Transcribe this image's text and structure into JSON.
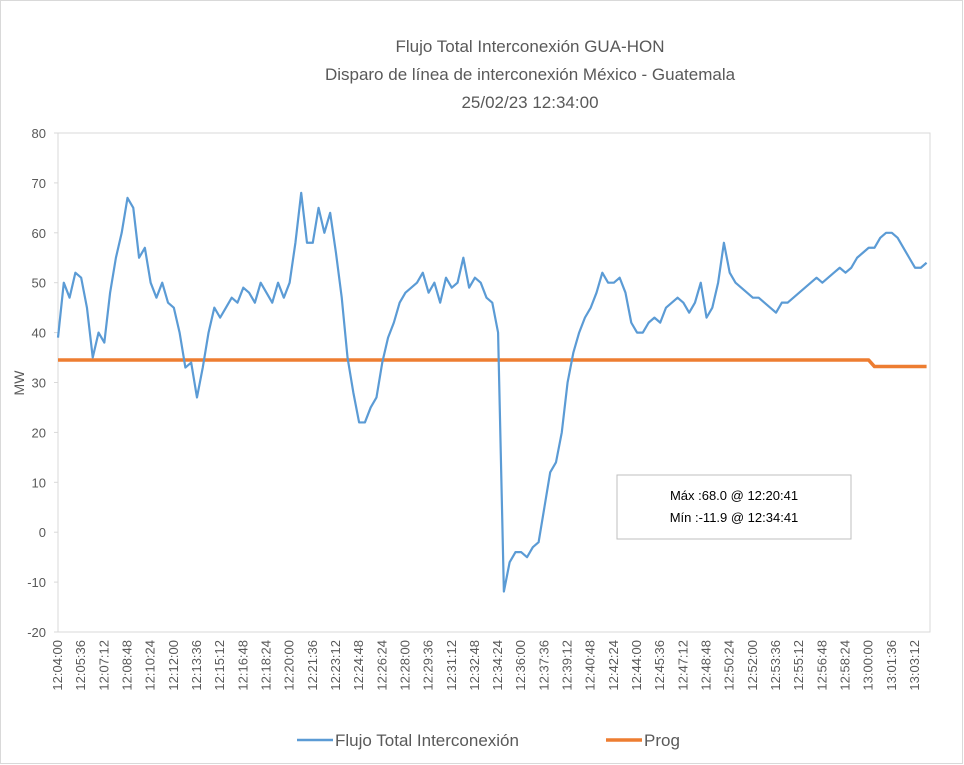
{
  "chart_data": {
    "type": "line",
    "title": "Flujo Total Interconexión GUA-HON",
    "subtitle": "Disparo de línea de interconexión México - Guatemala",
    "date": "25/02/23 12:34:00",
    "ylabel": "MW",
    "annotations": [
      "Máx :68.0 @ 12:20:41",
      "Mín :-11.9 @ 12:34:41"
    ],
    "x": [
      "12:04:00",
      "12:04:24",
      "12:04:48",
      "12:05:12",
      "12:05:36",
      "12:06:00",
      "12:06:24",
      "12:06:48",
      "12:07:12",
      "12:07:36",
      "12:08:00",
      "12:08:24",
      "12:08:48",
      "12:09:12",
      "12:09:36",
      "12:10:00",
      "12:10:24",
      "12:10:48",
      "12:11:12",
      "12:11:36",
      "12:12:00",
      "12:12:24",
      "12:12:48",
      "12:13:12",
      "12:13:36",
      "12:14:00",
      "12:14:24",
      "12:14:48",
      "12:15:12",
      "12:15:36",
      "12:16:00",
      "12:16:24",
      "12:16:48",
      "12:17:12",
      "12:17:36",
      "12:18:00",
      "12:18:24",
      "12:18:48",
      "12:19:12",
      "12:19:36",
      "12:20:00",
      "12:20:24",
      "12:20:48",
      "12:21:12",
      "12:21:36",
      "12:22:00",
      "12:22:24",
      "12:22:48",
      "12:23:12",
      "12:23:36",
      "12:24:00",
      "12:24:24",
      "12:24:48",
      "12:25:12",
      "12:25:36",
      "12:26:00",
      "12:26:24",
      "12:26:48",
      "12:27:12",
      "12:27:36",
      "12:28:00",
      "12:28:24",
      "12:28:48",
      "12:29:12",
      "12:29:36",
      "12:30:00",
      "12:30:24",
      "12:30:48",
      "12:31:12",
      "12:31:36",
      "12:32:00",
      "12:32:24",
      "12:32:48",
      "12:33:12",
      "12:33:36",
      "12:34:00",
      "12:34:24",
      "12:34:48",
      "12:35:12",
      "12:35:36",
      "12:36:00",
      "12:36:24",
      "12:36:48",
      "12:37:12",
      "12:37:36",
      "12:38:00",
      "12:38:24",
      "12:38:48",
      "12:39:12",
      "12:39:36",
      "12:40:00",
      "12:40:24",
      "12:40:48",
      "12:41:12",
      "12:41:36",
      "12:42:00",
      "12:42:24",
      "12:42:48",
      "12:43:12",
      "12:43:36",
      "12:44:00",
      "12:44:24",
      "12:44:48",
      "12:45:12",
      "12:45:36",
      "12:46:00",
      "12:46:24",
      "12:46:48",
      "12:47:12",
      "12:47:36",
      "12:48:00",
      "12:48:24",
      "12:48:48",
      "12:49:12",
      "12:49:36",
      "12:50:00",
      "12:50:24",
      "12:50:48",
      "12:51:12",
      "12:51:36",
      "12:52:00",
      "12:52:24",
      "12:52:48",
      "12:53:12",
      "12:53:36",
      "12:54:00",
      "12:54:24",
      "12:54:48",
      "12:55:12",
      "12:55:36",
      "12:56:00",
      "12:56:24",
      "12:56:48",
      "12:57:12",
      "12:57:36",
      "12:58:00",
      "12:58:24",
      "12:58:48",
      "12:59:12",
      "12:59:36",
      "13:00:00",
      "13:00:24",
      "13:00:48",
      "13:01:12",
      "13:01:36",
      "13:02:00",
      "13:02:24",
      "13:02:48",
      "13:03:12",
      "13:03:36",
      "13:04:00"
    ],
    "xticks": [
      "12:04:00",
      "12:05:36",
      "12:07:12",
      "12:08:48",
      "12:10:24",
      "12:12:00",
      "12:13:36",
      "12:15:12",
      "12:16:48",
      "12:18:24",
      "12:20:00",
      "12:21:36",
      "12:23:12",
      "12:24:48",
      "12:26:24",
      "12:28:00",
      "12:29:36",
      "12:31:12",
      "12:32:48",
      "12:34:24",
      "12:36:00",
      "12:37:36",
      "12:39:12",
      "12:40:48",
      "12:42:24",
      "12:44:00",
      "12:45:36",
      "12:47:12",
      "12:48:48",
      "12:50:24",
      "12:52:00",
      "12:53:36",
      "12:55:12",
      "12:56:48",
      "12:58:24",
      "13:00:00",
      "13:01:36",
      "13:03:12"
    ],
    "ylim": [
      -20,
      80
    ],
    "yticks": [
      -20,
      -10,
      0,
      10,
      20,
      30,
      40,
      50,
      60,
      70,
      80
    ],
    "grid": false,
    "legend": "bottom",
    "series": [
      {
        "name": "Flujo Total Interconexión",
        "color": "#5b9bd5",
        "values": [
          39,
          50,
          47,
          52,
          51,
          45,
          35,
          40,
          38,
          48,
          55,
          60,
          67,
          65,
          55,
          57,
          50,
          47,
          50,
          46,
          45,
          40,
          33,
          34,
          27,
          33,
          40,
          45,
          43,
          45,
          47,
          46,
          49,
          48,
          46,
          50,
          48,
          46,
          50,
          47,
          50,
          58,
          68,
          58,
          58,
          65,
          60,
          64,
          56,
          47,
          35,
          28,
          22,
          22,
          25,
          27,
          34,
          39,
          42,
          46,
          48,
          49,
          50,
          52,
          48,
          50,
          46,
          51,
          49,
          50,
          55,
          49,
          51,
          50,
          47,
          46,
          40,
          -11.9,
          -6,
          -4,
          -4,
          -5,
          -3,
          -2,
          5,
          12,
          14,
          20,
          30,
          36,
          40,
          43,
          45,
          48,
          52,
          50,
          50,
          51,
          48,
          42,
          40,
          40,
          42,
          43,
          42,
          45,
          46,
          47,
          46,
          44,
          46,
          50,
          43,
          45,
          50,
          58,
          52,
          50,
          49,
          48,
          47,
          47,
          46,
          45,
          44,
          46,
          46,
          47,
          48,
          49,
          50,
          51,
          50,
          51,
          52,
          53,
          52,
          53,
          55,
          56,
          57,
          57,
          59,
          60,
          60,
          59,
          57,
          55,
          53,
          53,
          54
        ]
      },
      {
        "name": "Prog",
        "color": "#ed7d31",
        "values": [
          34.5,
          34.5,
          34.5,
          34.5,
          34.5,
          34.5,
          34.5,
          34.5,
          34.5,
          34.5,
          34.5,
          34.5,
          34.5,
          34.5,
          34.5,
          34.5,
          34.5,
          34.5,
          34.5,
          34.5,
          34.5,
          34.5,
          34.5,
          34.5,
          34.5,
          34.5,
          34.5,
          34.5,
          34.5,
          34.5,
          34.5,
          34.5,
          34.5,
          34.5,
          34.5,
          34.5,
          34.5,
          34.5,
          34.5,
          34.5,
          34.5,
          34.5,
          34.5,
          34.5,
          34.5,
          34.5,
          34.5,
          34.5,
          34.5,
          34.5,
          34.5,
          34.5,
          34.5,
          34.5,
          34.5,
          34.5,
          34.5,
          34.5,
          34.5,
          34.5,
          34.5,
          34.5,
          34.5,
          34.5,
          34.5,
          34.5,
          34.5,
          34.5,
          34.5,
          34.5,
          34.5,
          34.5,
          34.5,
          34.5,
          34.5,
          34.5,
          34.5,
          34.5,
          34.5,
          34.5,
          34.5,
          34.5,
          34.5,
          34.5,
          34.5,
          34.5,
          34.5,
          34.5,
          34.5,
          34.5,
          34.5,
          34.5,
          34.5,
          34.5,
          34.5,
          34.5,
          34.5,
          34.5,
          34.5,
          34.5,
          34.5,
          34.5,
          34.5,
          34.5,
          34.5,
          34.5,
          34.5,
          34.5,
          34.5,
          34.5,
          34.5,
          34.5,
          34.5,
          34.5,
          34.5,
          34.5,
          34.5,
          34.5,
          34.5,
          34.5,
          34.5,
          34.5,
          34.5,
          34.5,
          34.5,
          34.5,
          34.5,
          34.5,
          34.5,
          34.5,
          34.5,
          34.5,
          34.5,
          34.5,
          34.5,
          34.5,
          34.5,
          34.5,
          34.5,
          34.5,
          34.5,
          33.2,
          33.2,
          33.2,
          33.2,
          33.2,
          33.2,
          33.2,
          33.2,
          33.2,
          33.2
        ]
      }
    ]
  }
}
